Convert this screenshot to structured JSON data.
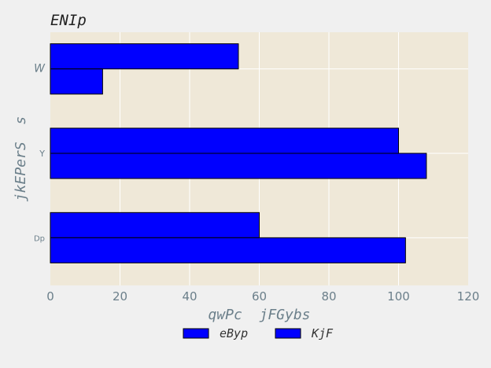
{
  "chart_data": {
    "type": "bar",
    "orientation": "horizontal",
    "title": "ENIp",
    "xlabel": "qwPc  jFGybs",
    "ylabel": "jkEPerS  s",
    "categories": [
      "W",
      "Y",
      "Dp"
    ],
    "series": [
      {
        "name": "eByp",
        "values": [
          54,
          100,
          60
        ],
        "color": "#0000ff"
      },
      {
        "name": "KjF",
        "values": [
          15,
          108,
          102
        ],
        "color": "#0000ff"
      }
    ],
    "xlim": [
      0,
      120
    ],
    "xticks": [
      "0",
      "20",
      "40",
      "60",
      "80",
      "100",
      "120"
    ],
    "grid": true,
    "legend_position": "bottom-center",
    "plot_background": "#efe8d8",
    "figure_background": "#f0f0f0",
    "bar_edge_color": "#000000"
  }
}
